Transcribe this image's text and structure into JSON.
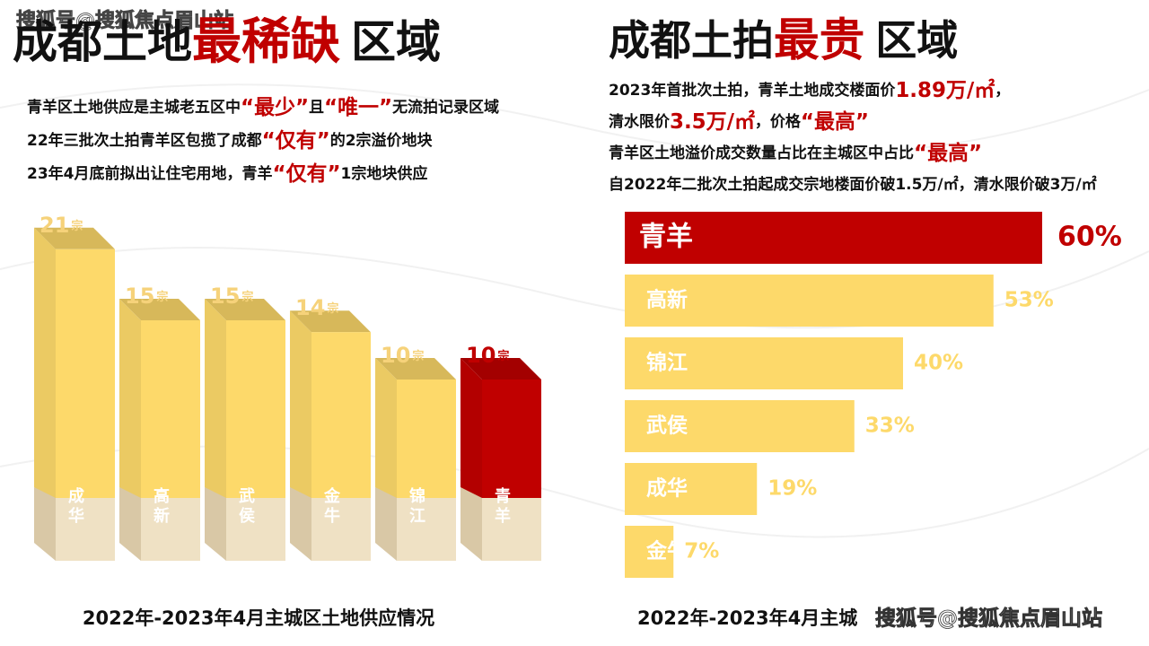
{
  "watermark": "搜狐号@搜狐焦点眉山站",
  "chart_data": [
    {
      "type": "bar3d",
      "title_parts": [
        "成都土地",
        "最稀缺",
        "区域"
      ],
      "annotations": [
        [
          "青羊区土地供应是主城老五区中",
          "“最少”",
          "且",
          "“唯一”",
          "无流拍记录区域"
        ],
        [
          "22年三批次土拍青羊区包揽了成都",
          "“仅有”",
          "的2宗溢价地块"
        ],
        [
          "23年4月底前拟出让住宅用地，青羊",
          "“仅有”",
          "1宗地块供应"
        ]
      ],
      "categories": [
        "成华",
        "高新",
        "武侯",
        "金牛",
        "锦江",
        "青羊"
      ],
      "values": [
        21,
        15,
        15,
        14,
        10,
        10
      ],
      "unit": "宗",
      "colors": [
        "#fdd96a",
        "#fdd96a",
        "#fdd96a",
        "#fdd96a",
        "#fdd96a",
        "#c00000"
      ],
      "caption": "2022年-2023年4月主城区土地供应情况"
    },
    {
      "type": "hbar",
      "title_parts": [
        "成都土拍",
        "最贵",
        "区域"
      ],
      "annotations": [
        [
          "2023年首批次土拍，青羊土地成交楼面价",
          "1.89万/㎡",
          "，"
        ],
        [
          "清水限价",
          "3.5万/㎡",
          "，价格",
          "“最高”"
        ],
        [
          "青羊区土地溢价成交数量占比在主城区中占比",
          "“最高”"
        ],
        [
          "自2022年二批次土拍起成交宗地楼面价破1.5万/㎡，清水限价破3万/㎡"
        ]
      ],
      "categories": [
        "青羊",
        "高新",
        "锦江",
        "武侯",
        "成华",
        "金牛"
      ],
      "values": [
        60,
        53,
        40,
        33,
        19,
        7
      ],
      "value_labels": [
        "60%",
        "53%",
        "40%",
        "33%",
        "19%",
        "7%"
      ],
      "colors": [
        "#c00000",
        "#fdd96a",
        "#fdd96a",
        "#fdd96a",
        "#fdd96a",
        "#fdd96a"
      ],
      "caption": "2022年-2023年4月主城"
    }
  ]
}
